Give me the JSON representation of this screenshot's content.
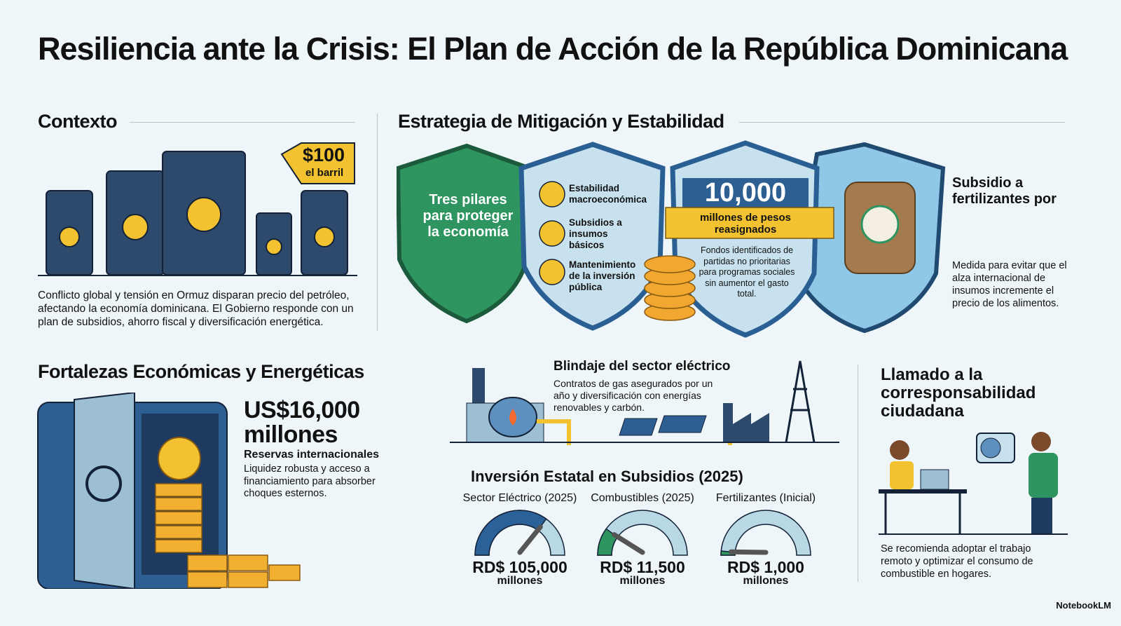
{
  "title": "Resiliencia ante la Crisis: El Plan de Acción de la República Dominicana",
  "context": {
    "heading": "Contexto",
    "price_tag": {
      "value": "$100",
      "unit": "el barril"
    },
    "text": "Conflicto global y tensión en Ormuz disparan precio del petróleo, afectando la economía dominicana. El Gobierno responde con un plan de subsidios, ahorro fiscal y diversificación energética."
  },
  "strategy": {
    "heading": "Estrategia de Mitigación y Estabilidad",
    "shield1": "Tres pilares para proteger la economía",
    "pillars": [
      {
        "label": "Estabilidad macroeconómica",
        "icon": "chart-growth-icon"
      },
      {
        "label": "Subsidios a insumos básicos",
        "icon": "hand-coin-icon"
      },
      {
        "label": "Mantenimiento de la inversión pública",
        "icon": "tools-icon"
      }
    ],
    "reassigned": {
      "value": "10,000",
      "label": "millones de pesos reasignados",
      "text": "Fondos identificados de partidas no prioritarias para programas sociales sin aumentor el gasto total."
    },
    "fertilizer": {
      "heading": "Subsidio a fertilizantes por",
      "text": "Medida para evitar que el alza internacional de insumos incremente el precio de los alimentos."
    }
  },
  "strengths": {
    "heading": "Fortalezas Económicas y Energéticas",
    "value": "US$16,000 millones",
    "label": "Reservas internacionales",
    "text": "Liquidez robusta y acceso a financiamiento para absorber choques esternos."
  },
  "electric": {
    "heading": "Blindaje del sector eléctrico",
    "text": "Contratos de gas asegurados por un año y diversificación con energías renovables y carbón."
  },
  "investment": {
    "heading": "Inversión Estatal en Subsidios (2025)",
    "gauges": [
      {
        "label": "Sector Eléctrico (2025)",
        "value": "RD$ 105,000",
        "unit": "millones",
        "fill": 0.7,
        "color": "#2a6199"
      },
      {
        "label": "Combustibles (2025)",
        "value": "RD$ 11,500",
        "unit": "millones",
        "fill": 0.2,
        "color": "#2f9560"
      },
      {
        "label": "Fertilizantes (Inicial)",
        "value": "RD$ 1,000",
        "unit": "millones",
        "fill": 0.03,
        "color": "#2f9560"
      }
    ]
  },
  "citizen": {
    "heading": "Llamado a la corresponsabilidad ciudadana",
    "text": "Se recomienda adoptar el trabajo remoto y optimizar el consumo de combustible en hogares."
  },
  "watermark": "NotebookLM"
}
